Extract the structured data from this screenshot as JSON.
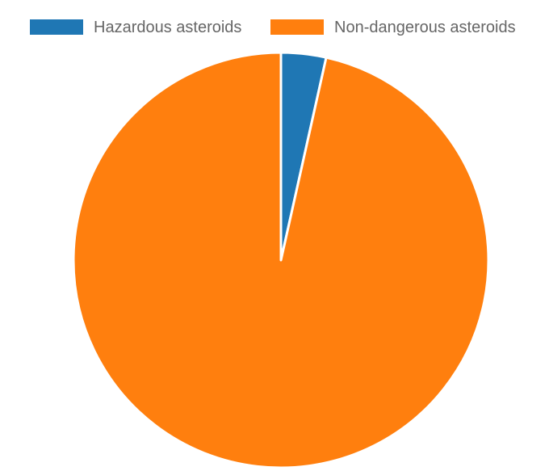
{
  "chart_data": {
    "type": "pie",
    "categories": [
      "Hazardous asteroids",
      "Non-dangerous asteroids"
    ],
    "values": [
      3.5,
      96.5
    ],
    "colors": [
      "#1f77b4",
      "#ff7f0e"
    ],
    "legend": "top",
    "slice_border_color": "#ffffff"
  }
}
